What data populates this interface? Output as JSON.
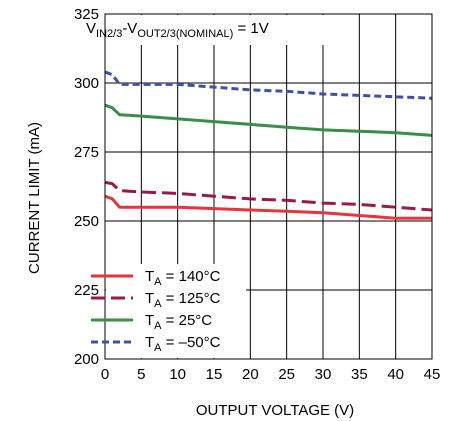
{
  "chart_data": {
    "type": "line",
    "title": "",
    "annotation": {
      "prefix_v1": "V",
      "sub1": "IN2/3",
      "mid": "-V",
      "sub2": "OUT2/3(NOMINAL)",
      "suffix": " = 1V"
    },
    "xlabel": "OUTPUT VOLTAGE (V)",
    "ylabel": "CURRENT LIMIT (mA)",
    "xlim": [
      0,
      45
    ],
    "ylim": [
      200,
      325
    ],
    "xticks": [
      "0",
      "5",
      "10",
      "15",
      "20",
      "25",
      "30",
      "35",
      "40",
      "45"
    ],
    "yticks": [
      "200",
      "225",
      "250",
      "275",
      "300",
      "325"
    ],
    "grid": true,
    "legend_position": "bottom-left",
    "series": [
      {
        "name_prefix": "T",
        "name_sub": "A",
        "name_suffix": " = 140°C",
        "color": "#e8343c",
        "dash": "solid",
        "x": [
          0,
          1,
          2,
          5,
          10,
          15,
          20,
          25,
          30,
          35,
          40,
          45
        ],
        "y": [
          259,
          258,
          255,
          255,
          255,
          254.5,
          254,
          253.5,
          253,
          252,
          251,
          251
        ]
      },
      {
        "name_prefix": "T",
        "name_sub": "A",
        "name_suffix": " = 125°C",
        "color": "#9b1a45",
        "dash": "long",
        "x": [
          0,
          1,
          2,
          5,
          10,
          15,
          20,
          25,
          30,
          35,
          40,
          45
        ],
        "y": [
          264,
          263.5,
          261,
          260.5,
          260,
          259,
          258,
          257.5,
          256.5,
          256,
          255,
          254
        ]
      },
      {
        "name_prefix": "T",
        "name_sub": "A",
        "name_suffix": " = 25°C",
        "color": "#3c8c4a",
        "dash": "solid",
        "x": [
          0,
          1,
          2,
          5,
          10,
          15,
          20,
          25,
          30,
          35,
          40,
          45
        ],
        "y": [
          292,
          291,
          288.5,
          288,
          287,
          286,
          285,
          284,
          283,
          282.5,
          282,
          281
        ]
      },
      {
        "name_prefix": "T",
        "name_sub": "A",
        "name_suffix": " = –50°C",
        "color": "#3f51a3",
        "dash": "short",
        "x": [
          0,
          1,
          2,
          5,
          10,
          15,
          20,
          25,
          30,
          35,
          40,
          45
        ],
        "y": [
          304,
          303,
          299.5,
          299.5,
          299.5,
          298.5,
          297.5,
          297,
          296,
          295.5,
          295,
          294.5
        ]
      }
    ]
  }
}
